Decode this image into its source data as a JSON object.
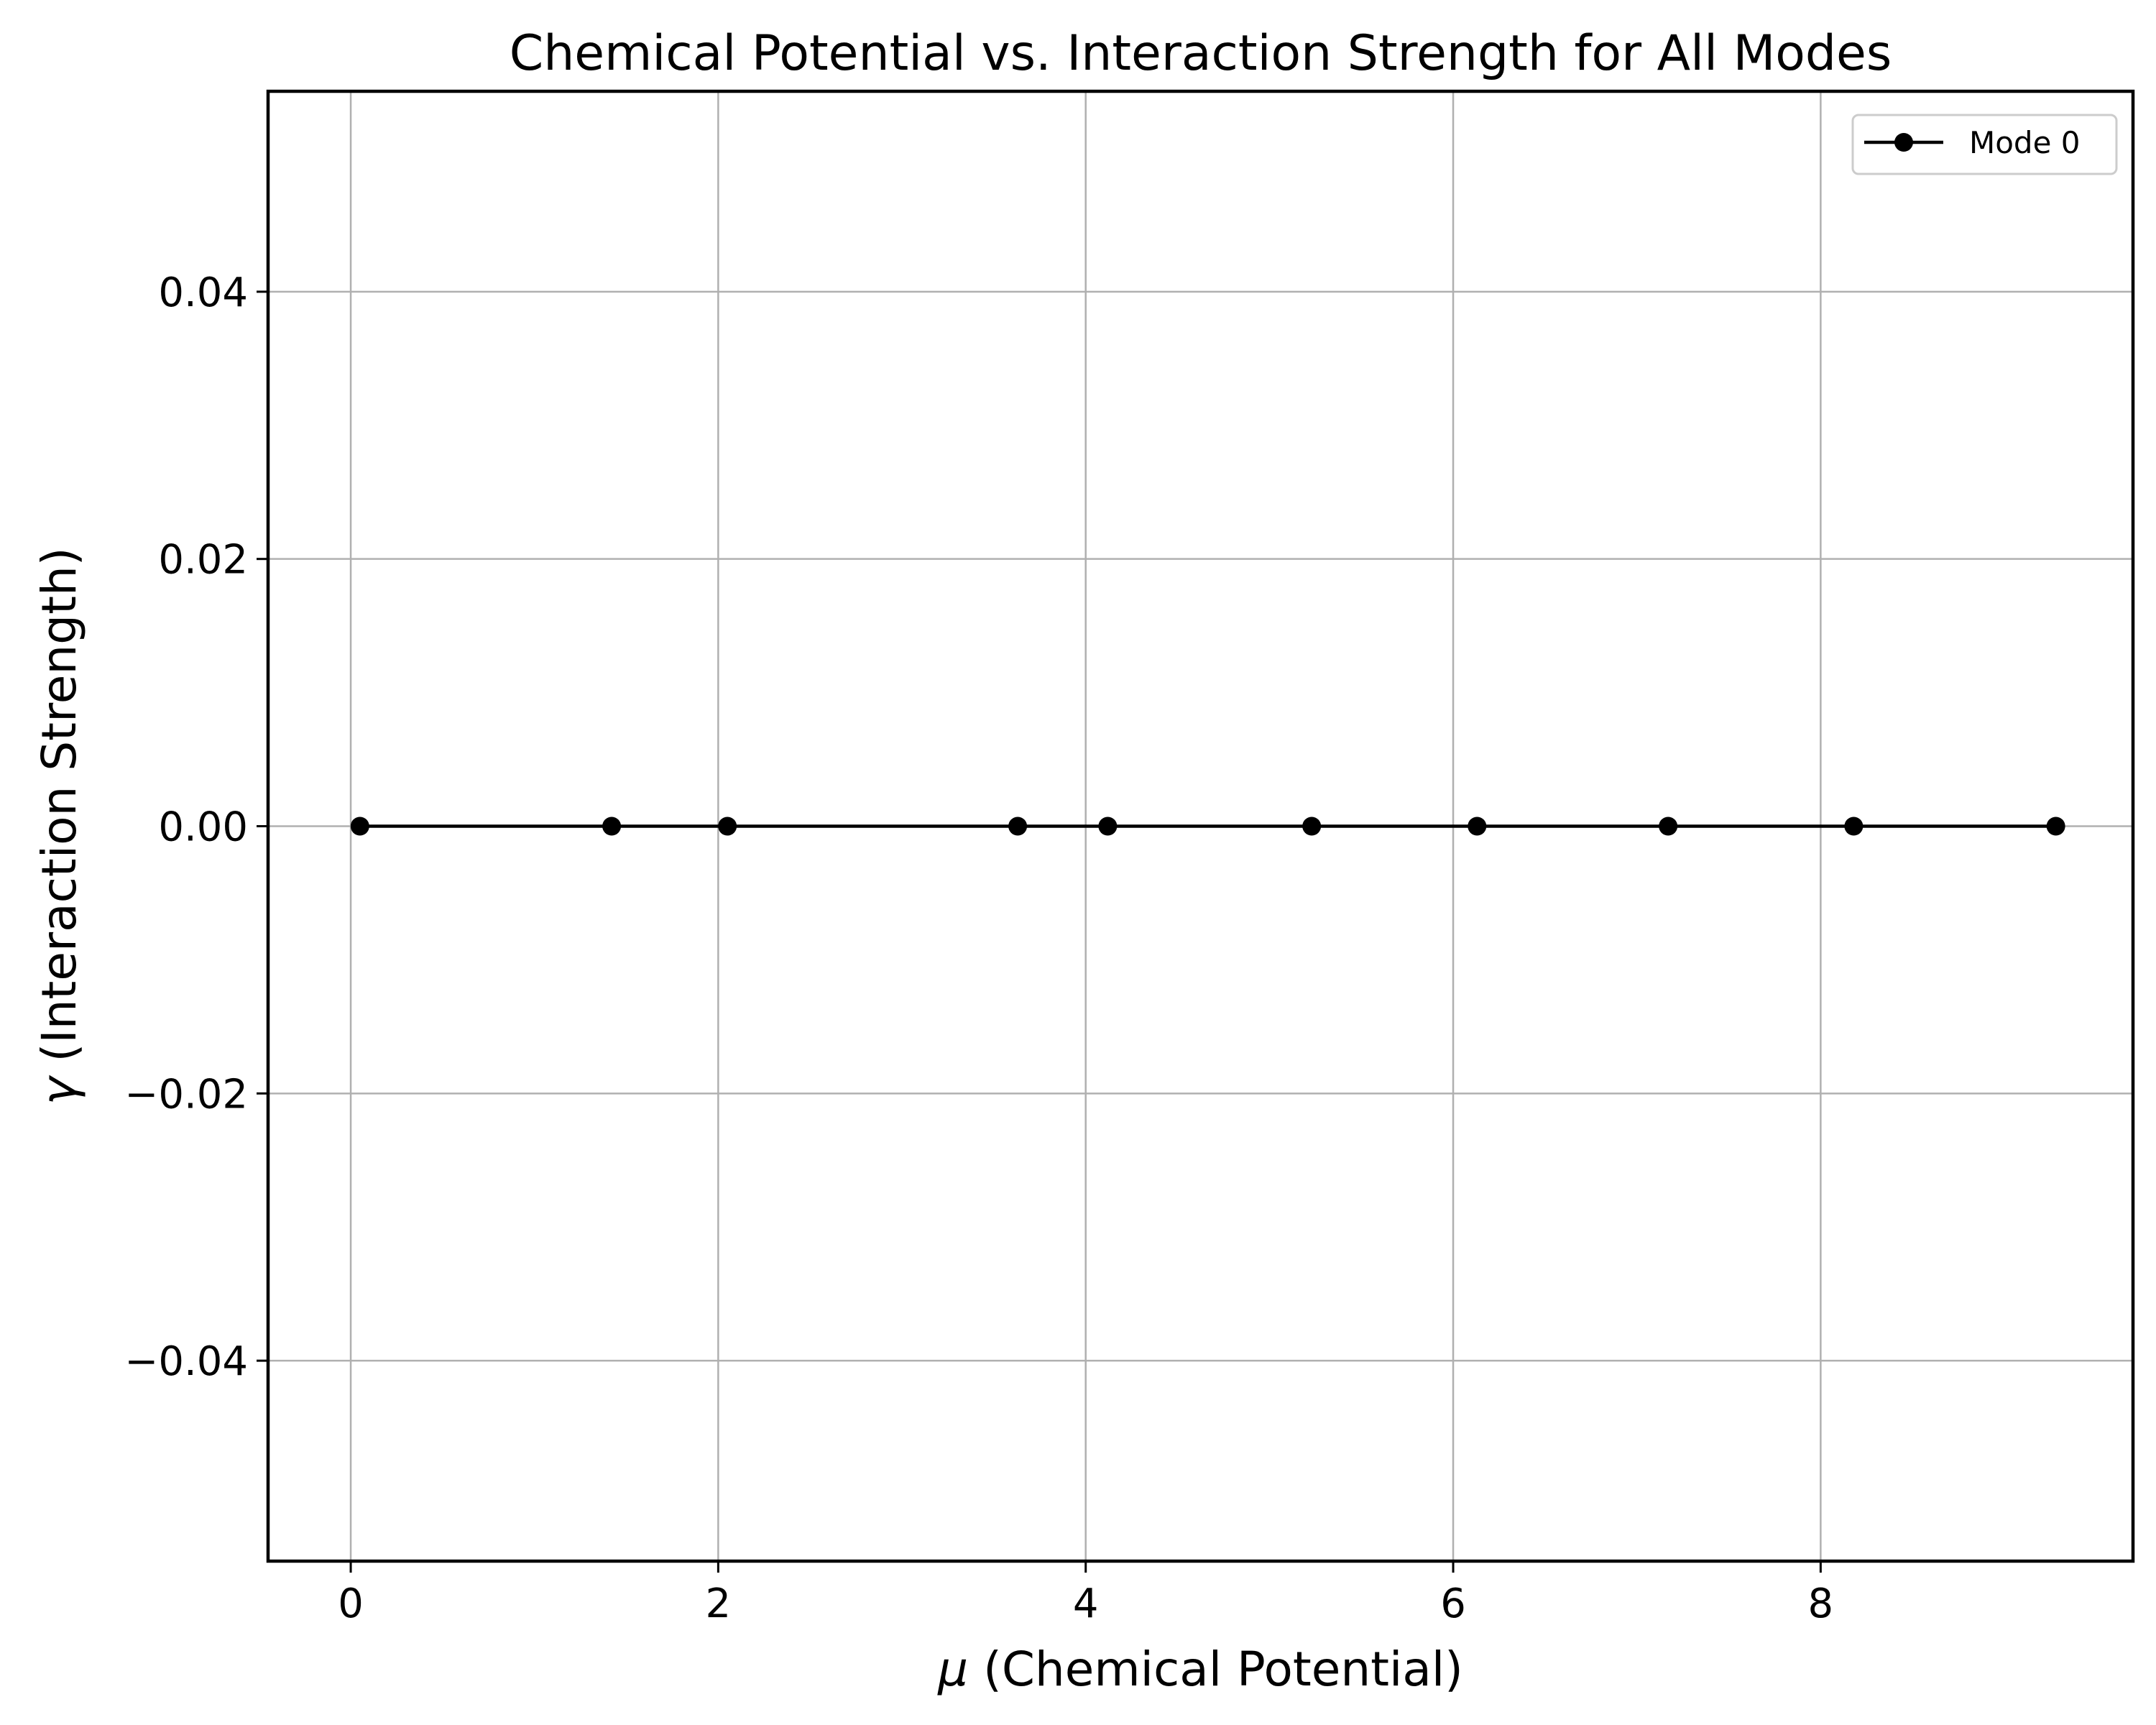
{
  "chart_data": {
    "type": "line",
    "title": "Chemical Potential vs. Interaction Strength for All Modes",
    "xlabel_symbol": "μ",
    "xlabel_text": " (Chemical Potential)",
    "ylabel_symbol": "γ",
    "ylabel_text": " (Interaction Strength)",
    "xlim": [
      -0.45,
      9.7
    ],
    "ylim": [
      -0.055,
      0.055
    ],
    "xticks": [
      0,
      2,
      4,
      6,
      8
    ],
    "xtick_labels": [
      "0",
      "2",
      "4",
      "6",
      "8"
    ],
    "yticks": [
      -0.04,
      -0.02,
      0.0,
      0.02,
      0.04
    ],
    "ytick_labels": [
      "−0.04",
      "−0.02",
      "0.00",
      "0.02",
      "0.04"
    ],
    "grid": true,
    "legend_position": "top-right",
    "series": [
      {
        "name": "Mode 0",
        "color": "#000000",
        "marker": "circle",
        "x": [
          0.05,
          1.42,
          2.05,
          3.63,
          4.12,
          5.23,
          6.13,
          7.17,
          8.18,
          9.28
        ],
        "y": [
          0,
          0,
          0,
          0,
          0,
          0,
          0,
          0,
          0,
          0
        ]
      }
    ]
  }
}
